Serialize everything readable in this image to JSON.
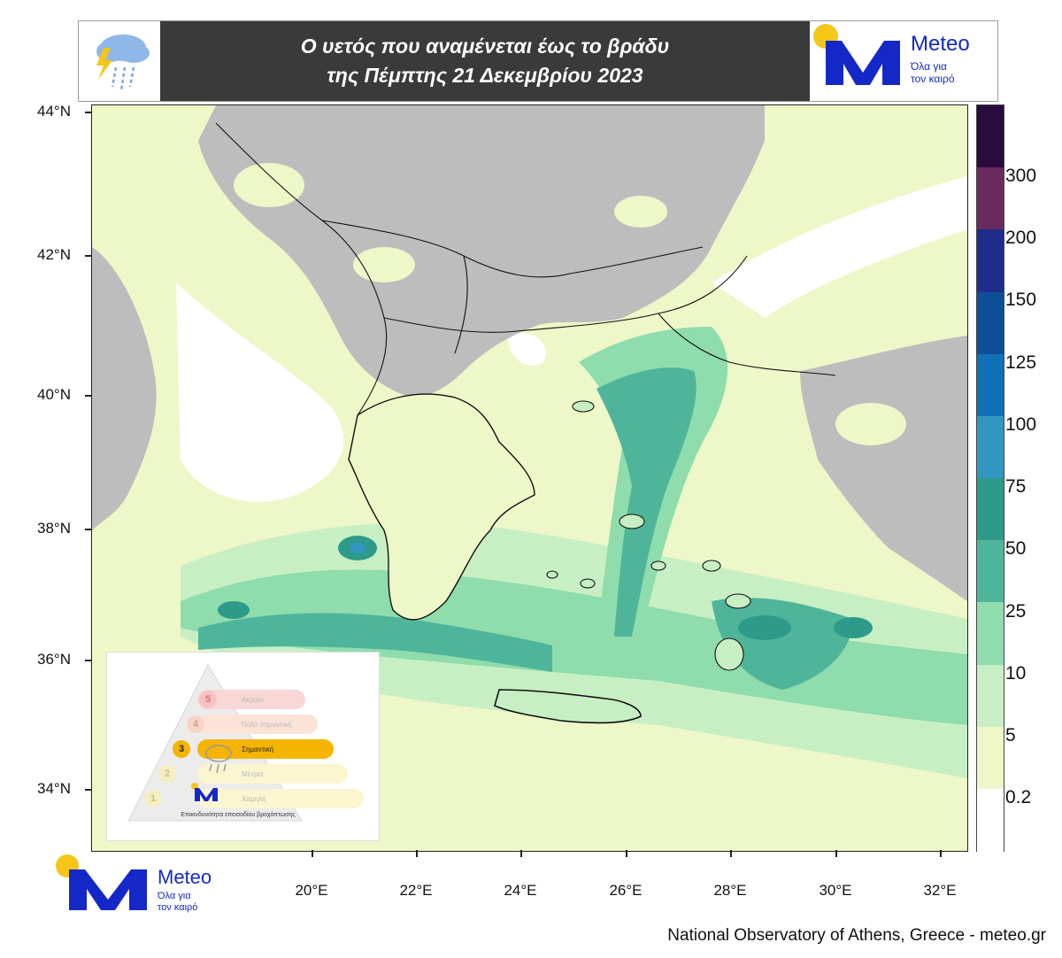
{
  "header": {
    "title_line1": "Ο υετός που αναμένεται έως το βράδυ",
    "title_line2": "της Πέμπτης 21 Δεκεμβρίου 2023",
    "weather_icon": "cloud-lightning-rain-icon"
  },
  "brand": {
    "name": "Meteo",
    "tagline_line1": "Όλα για",
    "tagline_line2": "τον καιρό",
    "logo_blue": "#1428c8",
    "sun_yellow": "#f5c518"
  },
  "map": {
    "lat_labels": [
      "44°N",
      "42°N",
      "40°N",
      "38°N",
      "36°N",
      "34°N"
    ],
    "lon_labels": [
      "20°E",
      "22°E",
      "24°E",
      "26°E",
      "28°E",
      "30°E",
      "32°E"
    ],
    "land_no_rain_color": "#bdbdbd",
    "sea_light_color": "#eef7c8"
  },
  "colorbar": {
    "labels": [
      "300",
      "200",
      "150",
      "125",
      "100",
      "75",
      "50",
      "25",
      "10",
      "5",
      "0.2"
    ],
    "colors": [
      "#2a0b3d",
      "#6b2a5e",
      "#1e2d8c",
      "#0c4f96",
      "#1070b8",
      "#3197c0",
      "#2e9a8a",
      "#4fb59a",
      "#8fdcac",
      "#c8efc4",
      "#eef7c8",
      "#ffffff"
    ]
  },
  "inset": {
    "levels": [
      {
        "num": "5",
        "label": "Ακραία"
      },
      {
        "num": "4",
        "label": "Πολύ σημαντική"
      },
      {
        "num": "3",
        "label": "Σημαντική"
      },
      {
        "num": "2",
        "label": "Μέτρια"
      },
      {
        "num": "1",
        "label": "Χαμηλή"
      }
    ],
    "caption": "Επικινδυνότητα επεισοδίου βροχόπτωσης",
    "active_color": "#f5b400"
  },
  "credit": "National Observatory of Athens, Greece - meteo.gr"
}
